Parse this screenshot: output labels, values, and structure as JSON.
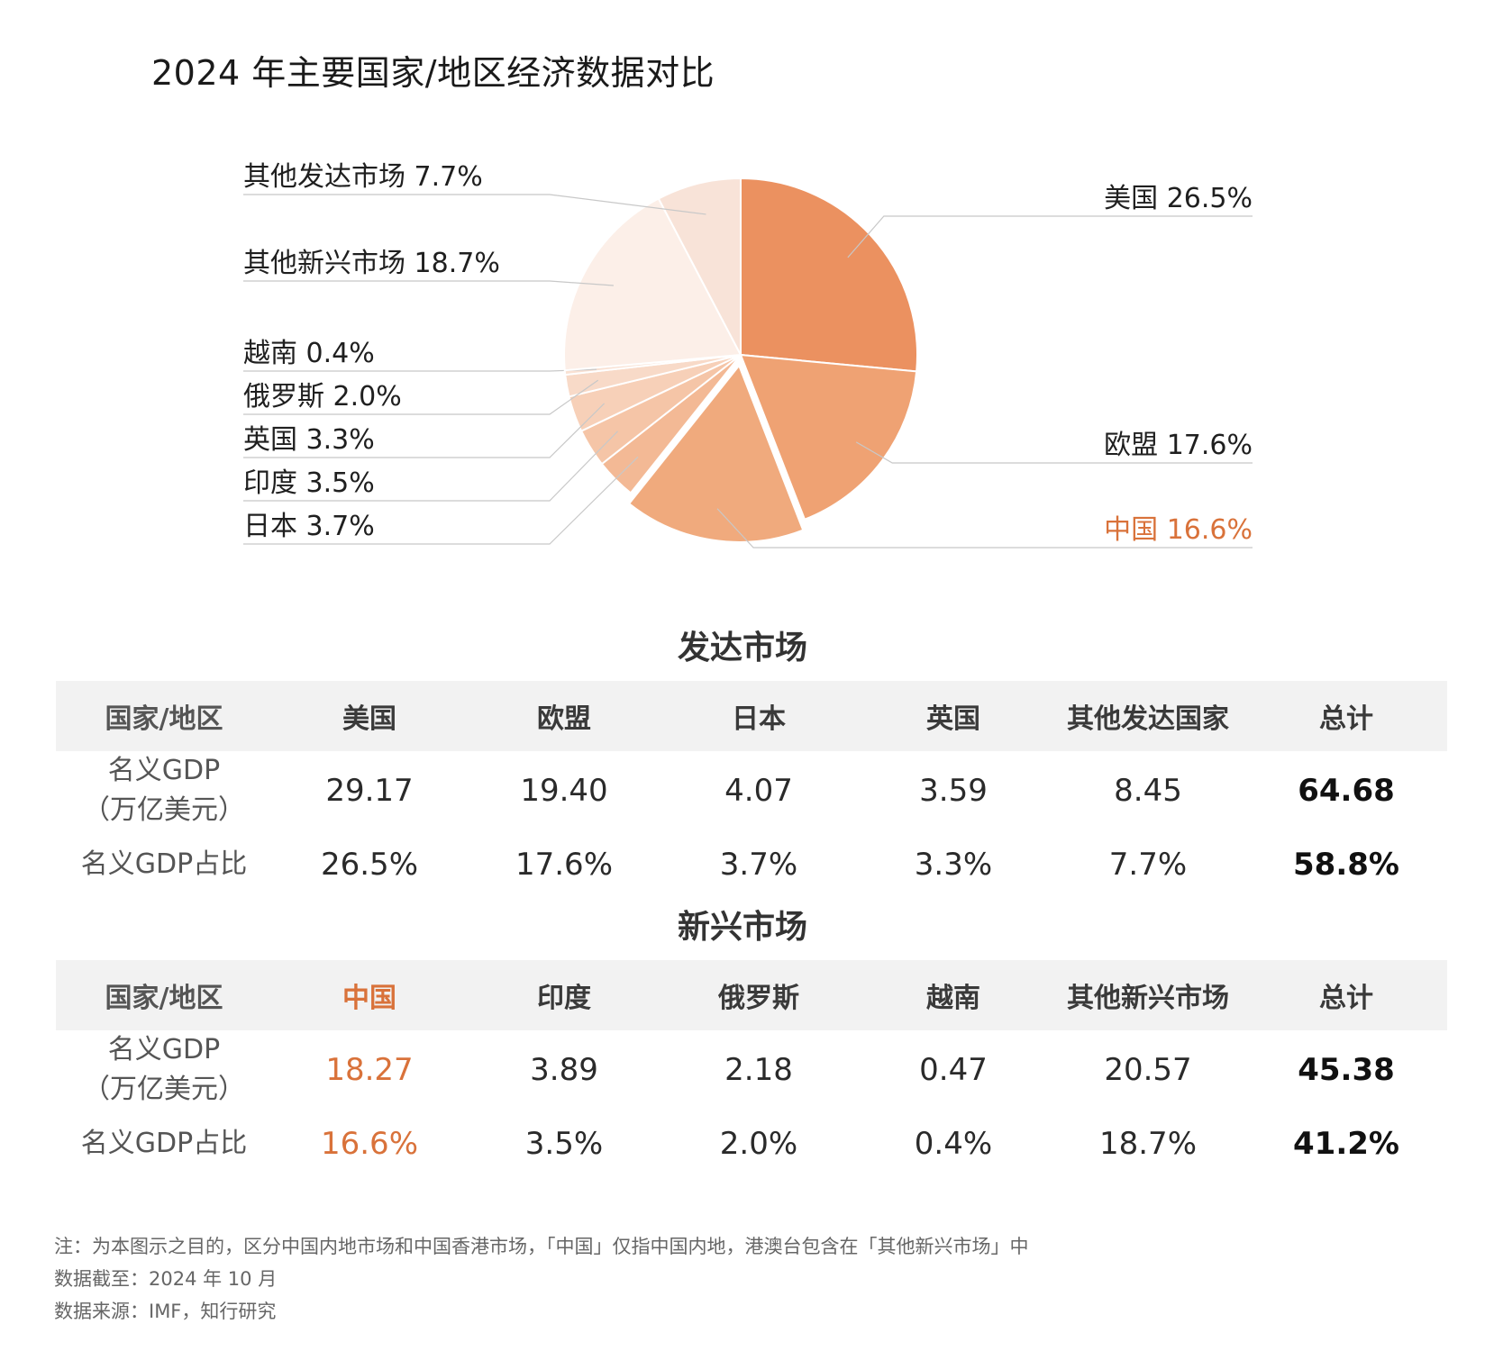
{
  "title": "2024 年主要国家/地区经济数据对比",
  "colors": {
    "accent": "#d9723a",
    "us": "#eb9160",
    "eu": "#efa273",
    "china": "#f0aa7d",
    "japan": "#f3b995",
    "india": "#f5c5a7",
    "uk": "#f7d0b8",
    "russia": "#f8dac8",
    "vietnam": "#f9e1d3",
    "other_emerging": "#fcefe8",
    "other_developed": "#f8e3d8"
  },
  "chart_data": {
    "type": "pie",
    "title": "2024 年主要国家/地区经济数据对比",
    "unit": "%",
    "slices": [
      {
        "key": "us",
        "name": "美国",
        "value": 26.5,
        "label": "美国 26.5%",
        "side": "right"
      },
      {
        "key": "eu",
        "name": "欧盟",
        "value": 17.6,
        "label": "欧盟 17.6%",
        "side": "right"
      },
      {
        "key": "china",
        "name": "中国",
        "value": 16.6,
        "label": "中国 16.6%",
        "side": "right",
        "highlight": true,
        "exploded": true
      },
      {
        "key": "japan",
        "name": "日本",
        "value": 3.7,
        "label": "日本 3.7%",
        "side": "left"
      },
      {
        "key": "india",
        "name": "印度",
        "value": 3.5,
        "label": "印度 3.5%",
        "side": "left"
      },
      {
        "key": "uk",
        "name": "英国",
        "value": 3.3,
        "label": "英国 3.3%",
        "side": "left"
      },
      {
        "key": "russia",
        "name": "俄罗斯",
        "value": 2.0,
        "label": "俄罗斯 2.0%",
        "side": "left"
      },
      {
        "key": "vietnam",
        "name": "越南",
        "value": 0.4,
        "label": "越南 0.4%",
        "side": "left"
      },
      {
        "key": "other_emerging",
        "name": "其他新兴市场",
        "value": 18.7,
        "label": "其他新兴市场 18.7%",
        "side": "left"
      },
      {
        "key": "other_developed",
        "name": "其他发达市场",
        "value": 7.7,
        "label": "其他发达市场 7.7%",
        "side": "left"
      }
    ]
  },
  "developed": {
    "title": "发达市场",
    "header_label": "国家/地区",
    "columns": [
      "美国",
      "欧盟",
      "日本",
      "英国",
      "其他发达国家",
      "总计"
    ],
    "row1_label_line1": "名义GDP",
    "row1_label_line2": "（万亿美元）",
    "row1_values": [
      "29.17",
      "19.40",
      "4.07",
      "3.59",
      "8.45",
      "64.68"
    ],
    "row2_label": "名义GDP占比",
    "row2_values": [
      "26.5%",
      "17.6%",
      "3.7%",
      "3.3%",
      "7.7%",
      "58.8%"
    ]
  },
  "emerging": {
    "title": "新兴市场",
    "header_label": "国家/地区",
    "columns": [
      "中国",
      "印度",
      "俄罗斯",
      "越南",
      "其他新兴市场",
      "总计"
    ],
    "row1_label_line1": "名义GDP",
    "row1_label_line2": "（万亿美元）",
    "row1_values": [
      "18.27",
      "3.89",
      "2.18",
      "0.47",
      "20.57",
      "45.38"
    ],
    "row2_label": "名义GDP占比",
    "row2_values": [
      "16.6%",
      "3.5%",
      "2.0%",
      "0.4%",
      "18.7%",
      "41.2%"
    ]
  },
  "notes": {
    "note": "注：为本图示之目的，区分中国内地市场和中国香港市场，「中国」仅指中国内地，港澳台包含在「其他新兴市场」中",
    "cutoff": "数据截至：2024 年 10 月",
    "source": "数据来源：IMF，知行研究"
  }
}
